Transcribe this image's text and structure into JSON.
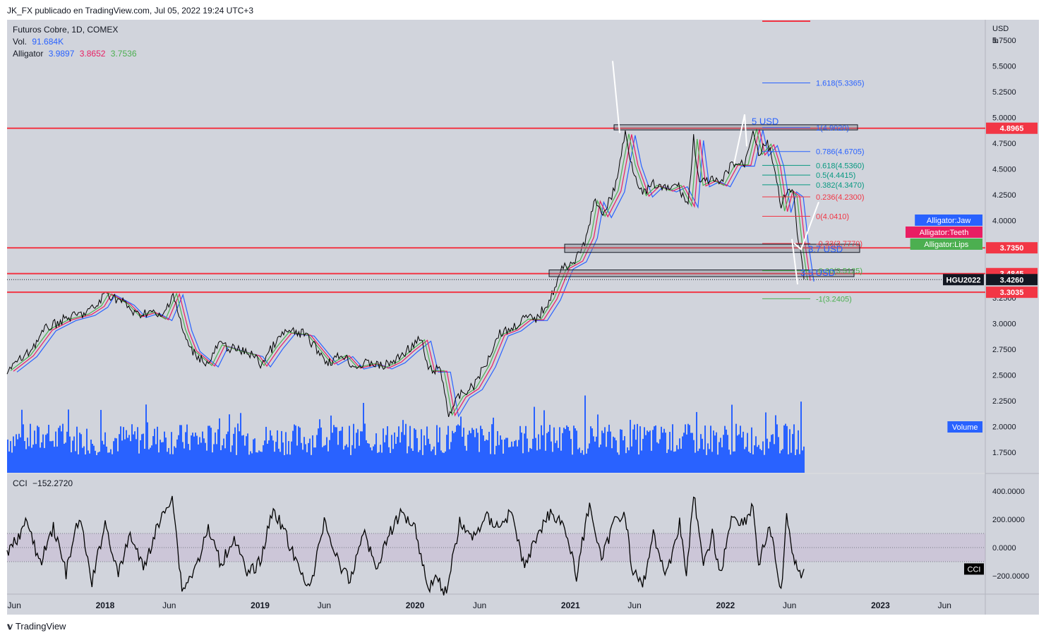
{
  "header": "JK_FX publicado en TradingView.com, Jul 05, 2022 19:24 UTC+3",
  "legend": {
    "symbol": "Futuros Cobre, 1D, COMEX",
    "vol_label": "Vol.",
    "vol_value": "91.684K",
    "alligator_label": "Alligator",
    "jaw": "3.9897",
    "teeth": "3.8652",
    "lips": "3.7536"
  },
  "cci_legend": {
    "label": "CCI",
    "value": "−152.2720"
  },
  "footer": "TradingView",
  "colors": {
    "background": "#d1d4dc",
    "jaw": "#2962ff",
    "teeth": "#e91e63",
    "lips": "#4caf50",
    "resistance": "#f23645",
    "volume": "#2962ff",
    "price": "#000000"
  },
  "chart_data": [
    {
      "type": "line",
      "title": "Futuros Cobre, 1D, COMEX",
      "y_unit": [
        "USD",
        "lb"
      ],
      "ylim": [
        1.55,
        5.95
      ],
      "y_ticks": [
        "5.7500",
        "5.5000",
        "5.2500",
        "5.0000",
        "4.7500",
        "4.5000",
        "4.2500",
        "4.0000",
        "3.7500",
        "3.5000",
        "3.2500",
        "3.0000",
        "2.7500",
        "2.5000",
        "2.2500",
        "2.0000",
        "1.7500"
      ],
      "x_ticks": [
        "Jun",
        "2018",
        "Jun",
        "2019",
        "Jun",
        "2020",
        "Jun",
        "2021",
        "Jun",
        "2022",
        "Jun",
        "2023",
        "Jun"
      ],
      "x_range": [
        "2017-05-15",
        "2023-09-05"
      ],
      "series": [
        {
          "name": "HGU2022",
          "points": [
            [
              "2017-05-15",
              2.55
            ],
            [
              "2017-07-01",
              2.7
            ],
            [
              "2017-08-15",
              2.95
            ],
            [
              "2017-10-01",
              3.05
            ],
            [
              "2017-11-15",
              3.1
            ],
            [
              "2017-12-15",
              3.18
            ],
            [
              "2018-01-01",
              3.3
            ],
            [
              "2018-02-15",
              3.2
            ],
            [
              "2018-03-15",
              3.08
            ],
            [
              "2018-04-15",
              3.12
            ],
            [
              "2018-05-15",
              3.05
            ],
            [
              "2018-06-10",
              3.3
            ],
            [
              "2018-07-01",
              2.95
            ],
            [
              "2018-07-20",
              2.75
            ],
            [
              "2018-09-01",
              2.6
            ],
            [
              "2018-09-25",
              2.8
            ],
            [
              "2018-11-01",
              2.75
            ],
            [
              "2018-12-15",
              2.7
            ],
            [
              "2019-01-02",
              2.6
            ],
            [
              "2019-02-01",
              2.78
            ],
            [
              "2019-03-01",
              2.92
            ],
            [
              "2019-04-15",
              2.9
            ],
            [
              "2019-05-15",
              2.75
            ],
            [
              "2019-06-10",
              2.62
            ],
            [
              "2019-07-15",
              2.7
            ],
            [
              "2019-08-10",
              2.58
            ],
            [
              "2019-09-20",
              2.62
            ],
            [
              "2019-10-15",
              2.58
            ],
            [
              "2019-11-15",
              2.64
            ],
            [
              "2019-12-15",
              2.75
            ],
            [
              "2020-01-15",
              2.85
            ],
            [
              "2020-02-01",
              2.55
            ],
            [
              "2020-03-01",
              2.55
            ],
            [
              "2020-03-20",
              2.12
            ],
            [
              "2020-04-15",
              2.3
            ],
            [
              "2020-05-15",
              2.38
            ],
            [
              "2020-06-15",
              2.6
            ],
            [
              "2020-07-15",
              2.9
            ],
            [
              "2020-08-15",
              2.95
            ],
            [
              "2020-09-15",
              3.05
            ],
            [
              "2020-10-15",
              3.05
            ],
            [
              "2020-11-15",
              3.25
            ],
            [
              "2020-12-15",
              3.55
            ],
            [
              "2021-01-15",
              3.62
            ],
            [
              "2021-02-10",
              3.85
            ],
            [
              "2021-02-25",
              4.2
            ],
            [
              "2021-03-15",
              4.05
            ],
            [
              "2021-04-15",
              4.3
            ],
            [
              "2021-05-10",
              4.85
            ],
            [
              "2021-05-25",
              4.55
            ],
            [
              "2021-06-20",
              4.25
            ],
            [
              "2021-07-15",
              4.35
            ],
            [
              "2021-08-15",
              4.3
            ],
            [
              "2021-09-10",
              4.35
            ],
            [
              "2021-10-05",
              4.15
            ],
            [
              "2021-10-18",
              4.8
            ],
            [
              "2021-11-01",
              4.35
            ],
            [
              "2021-11-25",
              4.4
            ],
            [
              "2021-12-20",
              4.35
            ],
            [
              "2022-01-15",
              4.55
            ],
            [
              "2022-02-15",
              4.55
            ],
            [
              "2022-03-07",
              4.9
            ],
            [
              "2022-03-20",
              4.65
            ],
            [
              "2022-04-10",
              4.75
            ],
            [
              "2022-04-25",
              4.55
            ],
            [
              "2022-05-12",
              4.1
            ],
            [
              "2022-05-25",
              4.3
            ],
            [
              "2022-06-10",
              4.25
            ],
            [
              "2022-06-22",
              3.8
            ],
            [
              "2022-07-05",
              3.43
            ]
          ]
        }
      ],
      "horizontal_levels": [
        "4.8965",
        "3.7350",
        "3.4845",
        "3.3035"
      ],
      "price_labels": [
        {
          "text": "4.8965",
          "kind": "level"
        },
        {
          "text": "3.7350",
          "kind": "level"
        },
        {
          "text": "3.4845",
          "kind": "level"
        },
        {
          "text": "HGU2022",
          "kind": "symbol"
        },
        {
          "text": "3.4260",
          "kind": "last"
        },
        {
          "text": "3.3035",
          "kind": "level"
        }
      ],
      "indicator_tags": [
        "Alligator:Jaw",
        "Alligator:Teeth",
        "Alligator:Lips",
        "Volume"
      ],
      "fibonacci": [
        {
          "label": "1.618(5.3365)",
          "value": 5.3365
        },
        {
          "label": "1(4.9020)",
          "value": 4.902
        },
        {
          "label": "0.786(4.6705)",
          "value": 4.6705
        },
        {
          "label": "0.618(4.5360)",
          "value": 4.536
        },
        {
          "label": "0.5(4.4415)",
          "value": 4.4415
        },
        {
          "label": "0.382(4.3470)",
          "value": 4.347
        },
        {
          "label": "0.236(4.2300)",
          "value": 4.23
        },
        {
          "label": "0(4.0410)",
          "value": 4.041
        },
        {
          "label": "-0.33(3.7770)",
          "value": 3.777
        },
        {
          "label": "-0.66(3.5125)",
          "value": 3.5125
        },
        {
          "label": "-1(3.2405)",
          "value": 3.2405
        }
      ],
      "annotations": [
        "5 USD",
        "3.7 USD",
        "3.5 USD"
      ]
    },
    {
      "type": "line",
      "title": "CCI",
      "ylim": [
        -330,
        520
      ],
      "y_ticks": [
        "400.0000",
        "200.0000",
        "0.0000",
        "−200.0000"
      ],
      "bands": [
        -100,
        100
      ],
      "last_value": "−152.2720",
      "tag": "CCI",
      "series": [
        {
          "name": "CCI",
          "points": [
            [
              "2017-05-15",
              -50
            ],
            [
              "2017-07-01",
              180
            ],
            [
              "2017-08-01",
              -120
            ],
            [
              "2017-09-01",
              150
            ],
            [
              "2017-10-01",
              -180
            ],
            [
              "2017-11-01",
              220
            ],
            [
              "2017-12-01",
              -250
            ],
            [
              "2018-01-01",
              180
            ],
            [
              "2018-02-01",
              -200
            ],
            [
              "2018-03-01",
              100
            ],
            [
              "2018-04-01",
              -150
            ],
            [
              "2018-05-01",
              120
            ],
            [
              "2018-06-08",
              380
            ],
            [
              "2018-07-01",
              -300
            ],
            [
              "2018-08-01",
              -150
            ],
            [
              "2018-09-01",
              130
            ],
            [
              "2018-10-01",
              -120
            ],
            [
              "2018-11-01",
              80
            ],
            [
              "2018-12-01",
              -200
            ],
            [
              "2019-01-01",
              -100
            ],
            [
              "2019-02-01",
              280
            ],
            [
              "2019-03-01",
              100
            ],
            [
              "2019-04-01",
              -150
            ],
            [
              "2019-05-01",
              -280
            ],
            [
              "2019-06-01",
              200
            ],
            [
              "2019-07-01",
              -80
            ],
            [
              "2019-08-01",
              -250
            ],
            [
              "2019-09-01",
              130
            ],
            [
              "2019-10-01",
              -150
            ],
            [
              "2019-11-01",
              100
            ],
            [
              "2019-12-01",
              250
            ],
            [
              "2020-01-01",
              150
            ],
            [
              "2020-02-01",
              -300
            ],
            [
              "2020-02-15",
              -200
            ],
            [
              "2020-03-15",
              -320
            ],
            [
              "2020-04-15",
              180
            ],
            [
              "2020-05-15",
              60
            ],
            [
              "2020-06-15",
              220
            ],
            [
              "2020-07-15",
              150
            ],
            [
              "2020-08-15",
              250
            ],
            [
              "2020-09-15",
              -150
            ],
            [
              "2020-10-15",
              100
            ],
            [
              "2020-11-15",
              250
            ],
            [
              "2020-12-15",
              180
            ],
            [
              "2021-01-15",
              -200
            ],
            [
              "2021-02-15",
              320
            ],
            [
              "2021-03-15",
              -100
            ],
            [
              "2021-04-15",
              200
            ],
            [
              "2021-05-10",
              250
            ],
            [
              "2021-05-25",
              -150
            ],
            [
              "2021-06-20",
              -280
            ],
            [
              "2021-07-15",
              100
            ],
            [
              "2021-08-15",
              -200
            ],
            [
              "2021-09-15",
              180
            ],
            [
              "2021-10-01",
              -200
            ],
            [
              "2021-10-18",
              400
            ],
            [
              "2021-11-10",
              -150
            ],
            [
              "2021-12-01",
              100
            ],
            [
              "2021-12-20",
              -200
            ],
            [
              "2022-01-15",
              220
            ],
            [
              "2022-02-15",
              180
            ],
            [
              "2022-03-07",
              300
            ],
            [
              "2022-03-20",
              -120
            ],
            [
              "2022-04-15",
              150
            ],
            [
              "2022-05-12",
              -320
            ],
            [
              "2022-05-25",
              200
            ],
            [
              "2022-06-10",
              -50
            ],
            [
              "2022-06-25",
              -200
            ],
            [
              "2022-07-05",
              -152
            ]
          ]
        }
      ]
    }
  ]
}
